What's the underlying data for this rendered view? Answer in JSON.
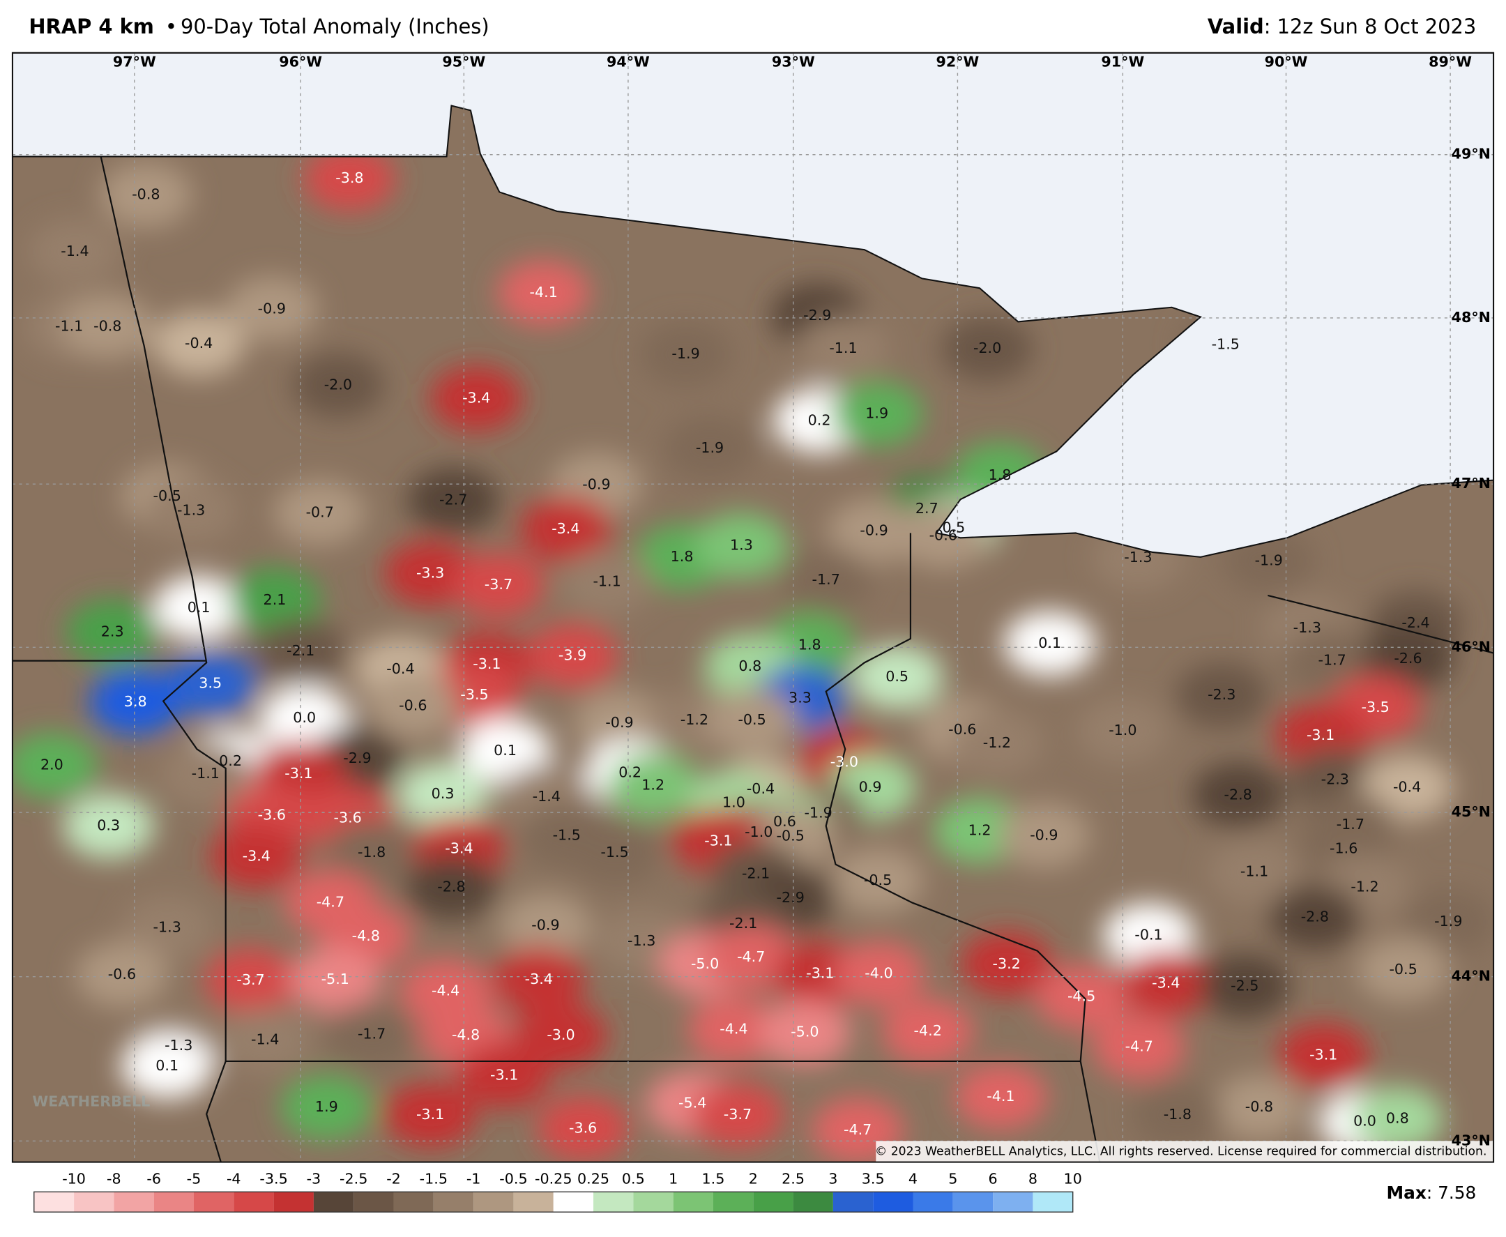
{
  "header": {
    "title_bold": "HRAP 4 km",
    "separator": "•",
    "title_rest": "90-Day Total Anomaly (Inches)",
    "valid_label": "Valid",
    "valid_text": ": 12z Sun 8 Oct 2023"
  },
  "map": {
    "longitude_labels": [
      "97°W",
      "96°W",
      "95°W",
      "94°W",
      "93°W",
      "92°W",
      "91°W",
      "90°W",
      "89°W"
    ],
    "latitude_labels": [
      "49°N",
      "48°N",
      "47°N",
      "46°N",
      "45°N",
      "44°N",
      "43°N"
    ],
    "anomaly_labels": [
      "-0.8",
      "-1.4",
      "-0.9",
      "-1.1",
      "-0.8",
      "-0.4",
      "-3.8",
      "-4.1",
      "-2.9",
      "-1.1",
      "-2.0",
      "-1.9",
      "-1.5",
      "-2.0",
      "-3.4",
      "0.2",
      "1.9",
      "-1.9",
      "1.8",
      "-0.9",
      "-2.7",
      "-0.5",
      "-1.3",
      "-0.7",
      "2.7",
      "-3.4",
      "-0.9",
      "0.5",
      "-0.6",
      "1.8",
      "1.3",
      "-1.3",
      "-1.9",
      "-3.3",
      "-3.7",
      "-1.1",
      "-1.7",
      "0.1",
      "2.1",
      "2.3",
      "-1.3",
      "-2.4",
      "-2.1",
      "-3.9",
      "1.8",
      "0.1",
      "-1.7",
      "-2.6",
      "-3.1",
      "-0.4",
      "0.8",
      "3.5",
      "0.5",
      "3.8",
      "-3.5",
      "3.3",
      "-2.3",
      "-3.5",
      "-0.6",
      "0.0",
      "-0.9",
      "-1.2",
      "-0.5",
      "-0.6",
      "-1.2",
      "-1.0",
      "-3.1",
      "-2.9",
      "0.1",
      "0.2",
      "-1.1",
      "-3.1",
      "-3.0",
      "2.0",
      "-2.3",
      "0.2",
      "1.2",
      "0.9",
      "-2.8",
      "-0.4",
      "-0.4",
      "0.3",
      "-1.4",
      "1.0",
      "-1.9",
      "-3.6",
      "-3.6",
      "0.6",
      "0.3",
      "-1.7",
      "-1.0",
      "-0.5",
      "1.2",
      "-0.9",
      "-1.5",
      "-3.1",
      "-1.8",
      "-3.4",
      "-1.5",
      "-1.6",
      "-3.4",
      "-2.1",
      "-1.1",
      "-0.5",
      "-2.8",
      "-1.2",
      "-2.9",
      "-4.7",
      "-2.1",
      "-1.3",
      "-0.9",
      "-2.8",
      "-1.9",
      "-0.1",
      "-4.8",
      "-1.3",
      "-5.0",
      "-4.7",
      "-3.2",
      "-0.5",
      "-0.6",
      "-3.1",
      "-4.0",
      "-3.7",
      "-5.1",
      "-3.4",
      "-3.4",
      "-2.5",
      "-4.4",
      "-4.5",
      "-4.4",
      "-5.0",
      "-4.2",
      "-1.7",
      "-4.8",
      "-3.0",
      "-1.4",
      "-1.3",
      "-4.7",
      "0.1",
      "-3.1",
      "-3.1",
      "-4.1",
      "-5.4",
      "1.9",
      "-0.8",
      "-3.7",
      "-3.1",
      "-1.8",
      "0.0",
      "0.8",
      "-3.6",
      "-4.7"
    ],
    "copyright": "© 2023 WeatherBELL Analytics, LLC. All rights reserved. License required for commercial distribution.",
    "logo": "WEATHERBELL"
  },
  "legend": {
    "ticks": [
      "-10",
      "-8",
      "-6",
      "-5",
      "-4",
      "-3.5",
      "-3",
      "-2.5",
      "-2",
      "-1.5",
      "-1",
      "-0.5",
      "-0.25",
      "0.25",
      "0.5",
      "1",
      "1.5",
      "2",
      "2.5",
      "3",
      "3.5",
      "4",
      "5",
      "6",
      "8",
      "10"
    ],
    "colors": [
      "#fde0e0",
      "#f8c4c4",
      "#f2a4a4",
      "#ea8585",
      "#e06464",
      "#d64848",
      "#c43232",
      "#574538",
      "#6b5646",
      "#7f6956",
      "#967f6a",
      "#ae9780",
      "#c8b29a",
      "#ffffff",
      "#c4e8c0",
      "#a4d89c",
      "#7cc474",
      "#5cb058",
      "#48a048",
      "#3c8a40",
      "#2a62d0",
      "#1e5ce0",
      "#3a7ae8",
      "#5a94ec",
      "#7eb0f0",
      "#b0e8f8"
    ],
    "max_label": "Max",
    "max_value": ": 7.58"
  }
}
